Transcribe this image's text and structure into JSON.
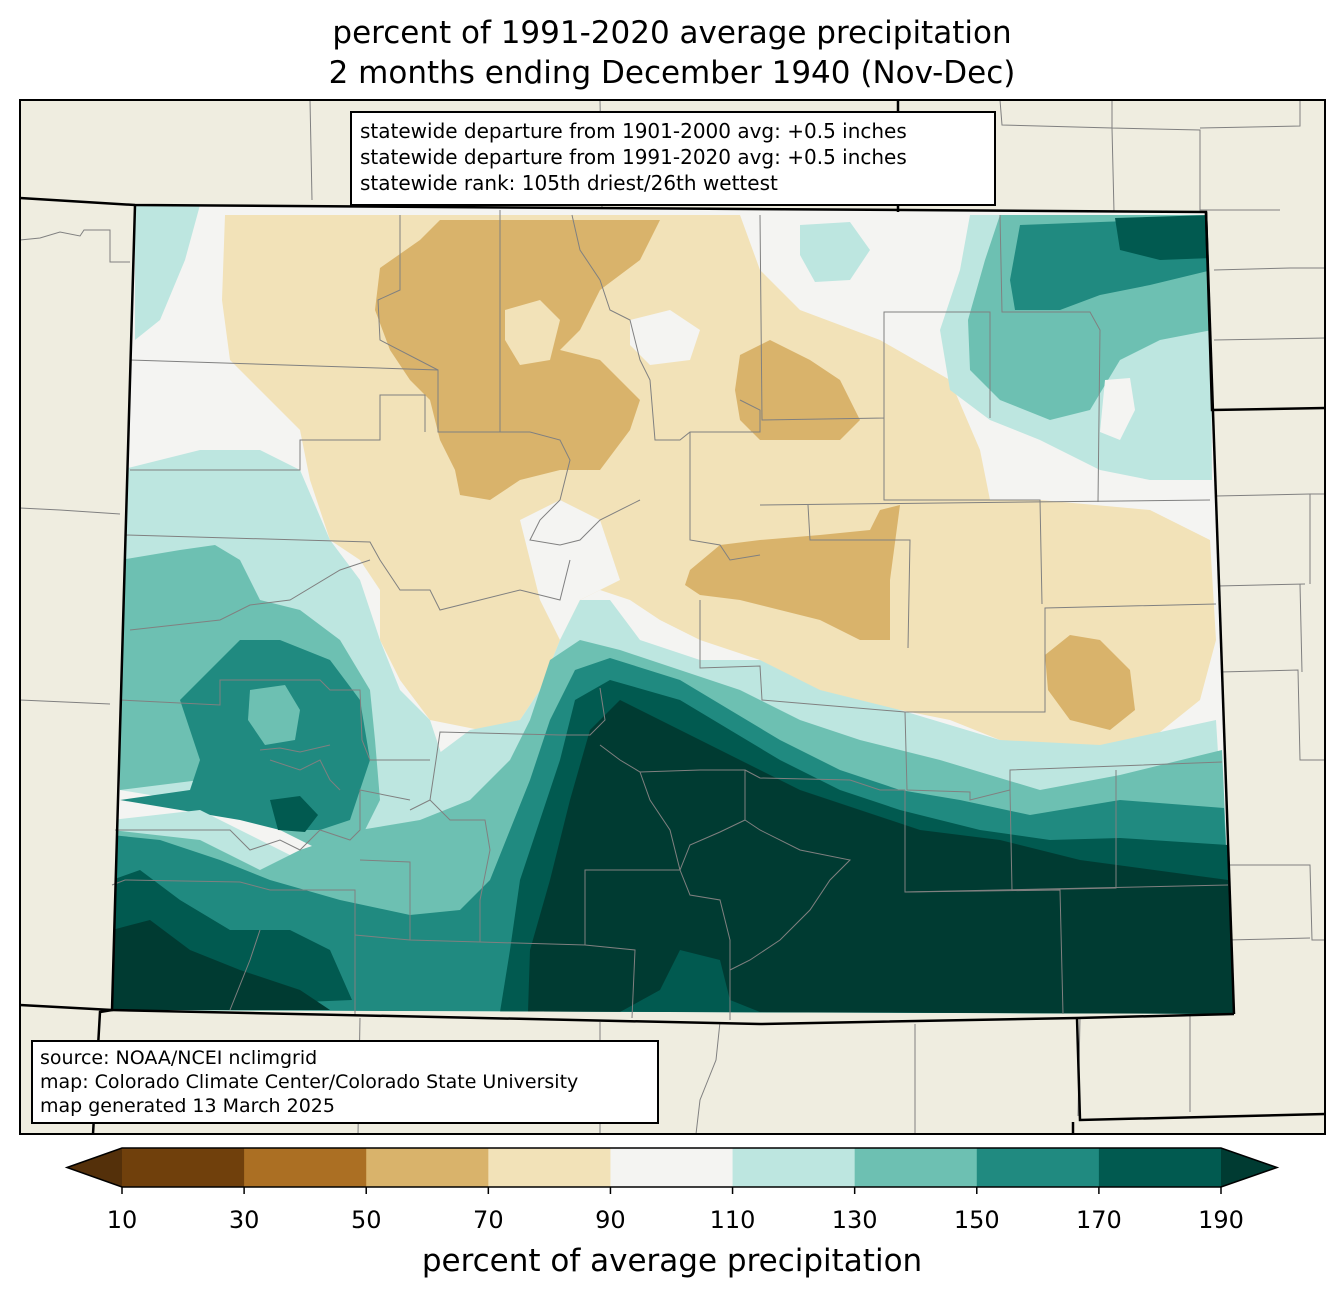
{
  "title": {
    "line1": "percent of 1991-2020 average precipitation",
    "line2": "2 months ending December 1940 (Nov-Dec)"
  },
  "stats": {
    "line1": "statewide departure from 1901-2000 avg: +0.5 inches",
    "line2": "statewide departure from 1991-2020 avg: +0.5 inches",
    "line3": "statewide rank: 105th driest/26th wettest"
  },
  "credits": {
    "line1": "source: NOAA/NCEI nclimgrid",
    "line2": "map: Colorado Climate Center/Colorado State University",
    "line3": "map generated 13 March 2025"
  },
  "colorbar": {
    "label": "percent of average precipitation",
    "ticks": [
      "10",
      "30",
      "50",
      "70",
      "90",
      "110",
      "130",
      "150",
      "170",
      "190"
    ],
    "colors": [
      "#54300a",
      "#70400c",
      "#ab6f23",
      "#d9b36b",
      "#f2e2b8",
      "#f4f4f2",
      "#bde6e0",
      "#6dc0b2",
      "#208a80",
      "#015a50",
      "#003b32"
    ]
  },
  "palette": {
    "land": "#efede0",
    "state_border": "#000000",
    "county_border": "#808080"
  }
}
